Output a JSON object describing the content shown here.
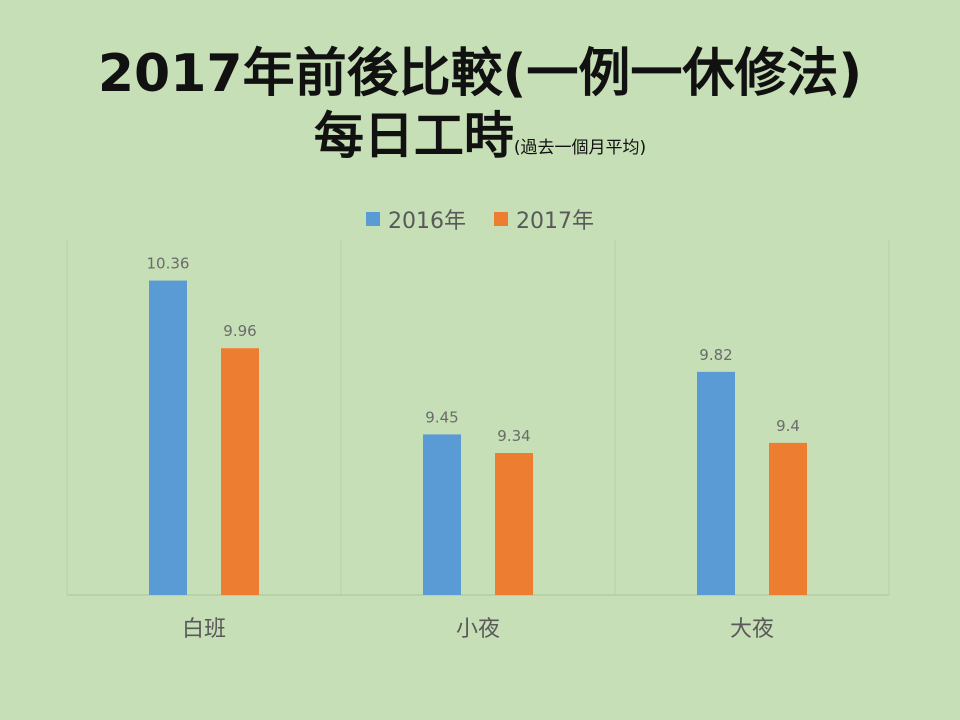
{
  "chart_data": {
    "type": "bar",
    "title": "2017年前後比較(一例一休修法)",
    "subtitle": "每日工時",
    "subtitle_note": "(過去一個月平均)",
    "categories": [
      "白班",
      "小夜",
      "大夜"
    ],
    "series": [
      {
        "name": "2016年",
        "color": "#5b9bd5",
        "values": [
          10.36,
          9.45,
          9.82
        ]
      },
      {
        "name": "2017年",
        "color": "#ed7d31",
        "values": [
          9.96,
          9.34,
          9.4
        ]
      }
    ],
    "data_labels": [
      [
        "10.36",
        "9.45",
        "9.82"
      ],
      [
        "9.96",
        "9.34",
        "9.4"
      ]
    ],
    "ylim": [
      8.5,
      10.6
    ],
    "grid": true,
    "legend_position": "top"
  }
}
